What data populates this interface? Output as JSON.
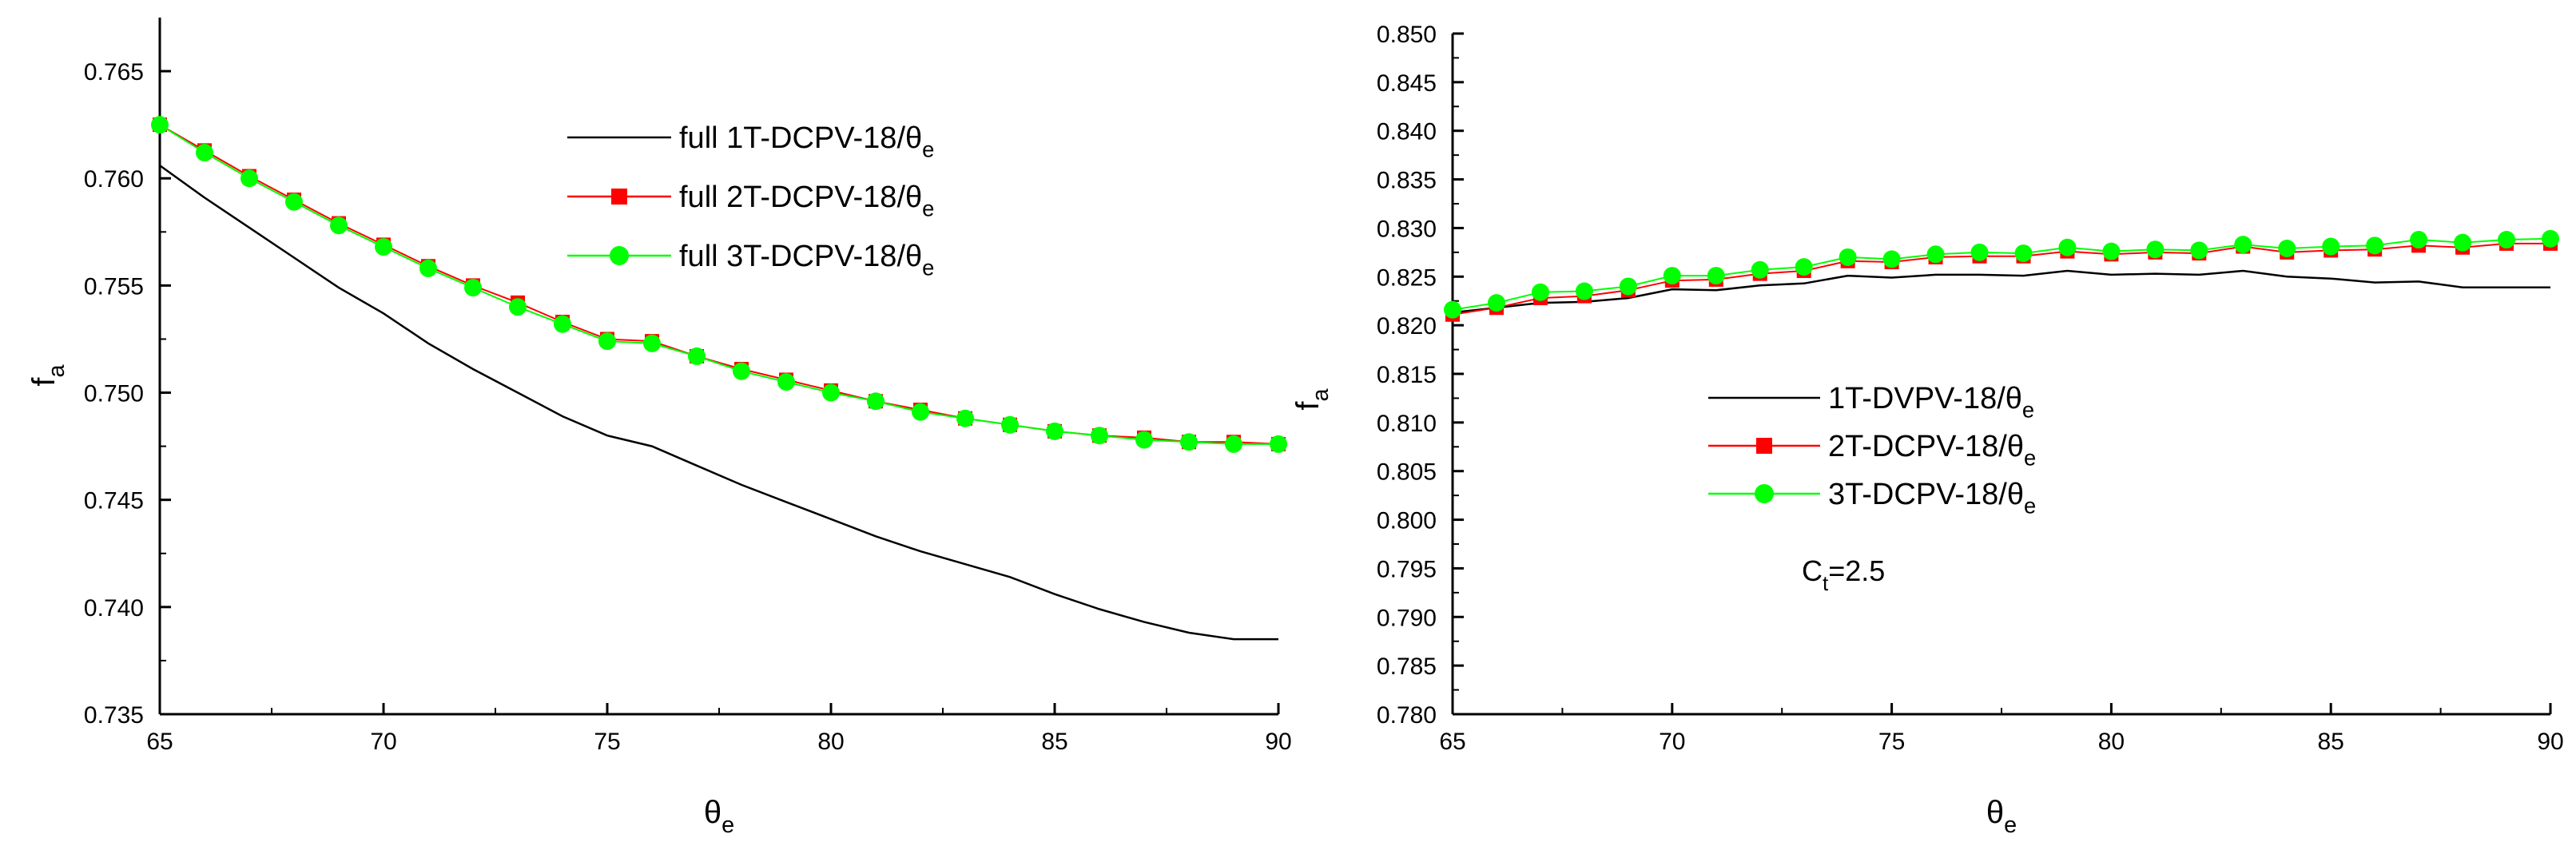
{
  "colors": {
    "series1": "#000000",
    "series2": "#ff0000",
    "series3": "#00ff00",
    "axis": "#000000"
  },
  "chart_data": [
    {
      "type": "line",
      "title": "",
      "xlabel": "θ",
      "xlabel_sub": "e",
      "ylabel": "f",
      "ylabel_sub": "a",
      "xlim": [
        65,
        90
      ],
      "ylim": [
        0.735,
        0.7675
      ],
      "xticks": [
        65,
        70,
        75,
        80,
        85,
        90
      ],
      "yticks": [
        0.735,
        0.74,
        0.745,
        0.75,
        0.755,
        0.76,
        0.765
      ],
      "ytick_labels": [
        "0.735",
        "0.740",
        "0.745",
        "0.750",
        "0.755",
        "0.760",
        "0.765"
      ],
      "legend_position": "top-right",
      "annotation": null,
      "series": [
        {
          "name": "full 1T-DCPV-18/θ",
          "name_sub": "e",
          "marker": "none",
          "x": [
            65,
            66,
            67,
            68,
            69,
            70,
            71,
            72,
            73,
            74,
            75,
            76,
            77,
            78,
            79,
            80,
            81,
            82,
            83,
            84,
            85,
            86,
            87,
            88,
            89,
            90
          ],
          "values": [
            0.7606,
            0.7591,
            0.7577,
            0.7563,
            0.7549,
            0.7537,
            0.7523,
            0.7511,
            0.75,
            0.7489,
            0.748,
            0.7475,
            0.7466,
            0.7457,
            0.7449,
            0.7441,
            0.7433,
            0.7426,
            0.742,
            0.7414,
            0.7406,
            0.7399,
            0.7393,
            0.7388,
            0.7385,
            0.7385
          ]
        },
        {
          "name": "full 2T-DCPV-18/θ",
          "name_sub": "e",
          "marker": "square",
          "x": [
            65,
            66,
            67,
            68,
            69,
            70,
            71,
            72,
            73,
            74,
            75,
            76,
            77,
            78,
            79,
            80,
            81,
            82,
            83,
            84,
            85,
            86,
            87,
            88,
            89,
            90
          ],
          "values": [
            0.7625,
            0.7613,
            0.7601,
            0.759,
            0.7579,
            0.7569,
            0.7559,
            0.755,
            0.7542,
            0.7533,
            0.7525,
            0.7524,
            0.7517,
            0.7511,
            0.7506,
            0.7501,
            0.7496,
            0.7492,
            0.7488,
            0.7485,
            0.7482,
            0.748,
            0.7479,
            0.7477,
            0.7477,
            0.7476
          ]
        },
        {
          "name": "full 3T-DCPV-18/θ",
          "name_sub": "e",
          "marker": "circle",
          "x": [
            65,
            66,
            67,
            68,
            69,
            70,
            71,
            72,
            73,
            74,
            75,
            76,
            77,
            78,
            79,
            80,
            81,
            82,
            83,
            84,
            85,
            86,
            87,
            88,
            89,
            90
          ],
          "values": [
            0.7625,
            0.7612,
            0.76,
            0.7589,
            0.7578,
            0.7568,
            0.7558,
            0.7549,
            0.754,
            0.7532,
            0.7524,
            0.7523,
            0.7517,
            0.751,
            0.7505,
            0.75,
            0.7496,
            0.7491,
            0.7488,
            0.7485,
            0.7482,
            0.748,
            0.7478,
            0.7477,
            0.7476,
            0.7476
          ]
        }
      ]
    },
    {
      "type": "line",
      "title": "",
      "xlabel": "θ",
      "xlabel_sub": "e",
      "ylabel": "f",
      "ylabel_sub": "a",
      "xlim": [
        65,
        90
      ],
      "ylim": [
        0.78,
        0.85
      ],
      "xticks": [
        65,
        70,
        75,
        80,
        85,
        90
      ],
      "yticks": [
        0.78,
        0.785,
        0.79,
        0.795,
        0.8,
        0.805,
        0.81,
        0.815,
        0.82,
        0.825,
        0.83,
        0.835,
        0.84,
        0.845,
        0.85
      ],
      "ytick_labels": [
        "0.780",
        "0.785",
        "0.790",
        "0.795",
        "0.800",
        "0.805",
        "0.810",
        "0.815",
        "0.820",
        "0.825",
        "0.830",
        "0.835",
        "0.840",
        "0.845",
        "0.850"
      ],
      "legend_position": "center-left",
      "annotation": {
        "text": "C",
        "sub": "t",
        "suffix": "=2.5"
      },
      "series": [
        {
          "name": "1T-DVPV-18/θ",
          "name_sub": "e",
          "marker": "none",
          "x": [
            65,
            66,
            67,
            68,
            69,
            70,
            71,
            72,
            73,
            74,
            75,
            76,
            77,
            78,
            79,
            80,
            81,
            82,
            83,
            84,
            85,
            86,
            87,
            88,
            89,
            90
          ],
          "values": [
            0.8213,
            0.8218,
            0.8223,
            0.8224,
            0.8228,
            0.8237,
            0.8236,
            0.8241,
            0.8243,
            0.8251,
            0.8249,
            0.8252,
            0.8252,
            0.8251,
            0.8256,
            0.8252,
            0.8253,
            0.8252,
            0.8256,
            0.825,
            0.8248,
            0.8244,
            0.8245,
            0.8239,
            0.8239,
            0.8239
          ]
        },
        {
          "name": "2T-DCPV-18/θ",
          "name_sub": "e",
          "marker": "square",
          "x": [
            65,
            66,
            67,
            68,
            69,
            70,
            71,
            72,
            73,
            74,
            75,
            76,
            77,
            78,
            79,
            80,
            81,
            82,
            83,
            84,
            85,
            86,
            87,
            88,
            89,
            90
          ],
          "values": [
            0.8211,
            0.8218,
            0.8228,
            0.823,
            0.8236,
            0.8246,
            0.8247,
            0.8253,
            0.8256,
            0.8266,
            0.8265,
            0.827,
            0.8271,
            0.8271,
            0.8276,
            0.8273,
            0.8275,
            0.8274,
            0.8281,
            0.8275,
            0.8277,
            0.8278,
            0.8282,
            0.828,
            0.8284,
            0.8284
          ]
        },
        {
          "name": "3T-DCPV-18/θ",
          "name_sub": "e",
          "marker": "circle",
          "x": [
            65,
            66,
            67,
            68,
            69,
            70,
            71,
            72,
            73,
            74,
            75,
            76,
            77,
            78,
            79,
            80,
            81,
            82,
            83,
            84,
            85,
            86,
            87,
            88,
            89,
            90
          ],
          "values": [
            0.8216,
            0.8223,
            0.8234,
            0.8235,
            0.824,
            0.8251,
            0.8251,
            0.8257,
            0.826,
            0.827,
            0.8268,
            0.8273,
            0.8275,
            0.8274,
            0.828,
            0.8276,
            0.8278,
            0.8277,
            0.8283,
            0.8279,
            0.8281,
            0.8282,
            0.8288,
            0.8285,
            0.8288,
            0.8289
          ]
        }
      ]
    }
  ]
}
